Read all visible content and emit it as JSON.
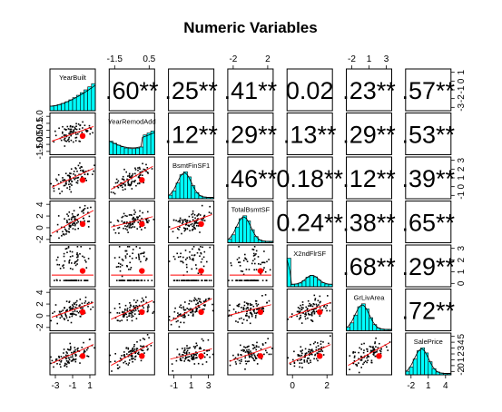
{
  "chart_data": {
    "type": "scatter-matrix",
    "title": "Numeric Variables",
    "variables": [
      "YearBuilt",
      "YearRemodAdd",
      "BsmtFinSF1",
      "TotalBsmtSF",
      "X2ndFlrSF",
      "GrLivArea",
      "SalePrice"
    ],
    "correlations": [
      [
        null,
        ".60**",
        ".25**",
        ".41**",
        "0.02",
        ".23**",
        ".57**"
      ],
      [
        null,
        null,
        ".12**",
        ".29**",
        ".13**",
        ".29**",
        ".53**"
      ],
      [
        null,
        null,
        null,
        ".46**",
        "0.18**",
        ".12**",
        ".39**"
      ],
      [
        null,
        null,
        null,
        null,
        "0.24**",
        ".38**",
        ".65**"
      ],
      [
        null,
        null,
        null,
        null,
        null,
        ".68**",
        ".29**"
      ],
      [
        null,
        null,
        null,
        null,
        null,
        null,
        ".72**"
      ],
      [
        null,
        null,
        null,
        null,
        null,
        null,
        null
      ]
    ],
    "top_ticks": [
      {
        "col": 1,
        "labels": [
          "-1.5",
          "0.5"
        ]
      },
      {
        "col": 3,
        "labels": [
          "-2",
          "2"
        ]
      },
      {
        "col": 5,
        "labels": [
          "-2",
          "1",
          "3"
        ]
      }
    ],
    "bottom_ticks": [
      {
        "col": 0,
        "labels": [
          "-3",
          "-1",
          "1"
        ]
      },
      {
        "col": 2,
        "labels": [
          "-1",
          "1",
          "3"
        ]
      },
      {
        "col": 4,
        "labels": [
          "0",
          "2"
        ]
      },
      {
        "col": 6,
        "labels": [
          "-2",
          "1",
          "4"
        ]
      }
    ],
    "left_ticks": [
      {
        "row": 1,
        "labels": [
          "1.0",
          "0.5",
          "0.0",
          "-0.5",
          "-1.0",
          "-1.5"
        ]
      },
      {
        "row": 3,
        "labels": [
          "4",
          "2",
          "0",
          "-2"
        ]
      },
      {
        "row": 5,
        "labels": [
          "4",
          "2",
          "0",
          "-2"
        ]
      }
    ],
    "right_ticks": [
      {
        "row": 0,
        "labels": [
          "1",
          "0",
          "-1",
          "-2",
          "-3"
        ]
      },
      {
        "row": 2,
        "labels": [
          "3",
          "2",
          "1",
          "0",
          "-1"
        ]
      },
      {
        "row": 4,
        "labels": [
          "3",
          "2",
          "1",
          "0"
        ]
      },
      {
        "row": 6,
        "labels": [
          "5",
          "4",
          "3",
          "2",
          "1",
          "0",
          "-2"
        ]
      }
    ],
    "colors": {
      "histogram": "#00ffff",
      "points": "#000000",
      "fit_line": "#ff0000",
      "centroid": "#ff0000",
      "density": "#000000"
    }
  }
}
